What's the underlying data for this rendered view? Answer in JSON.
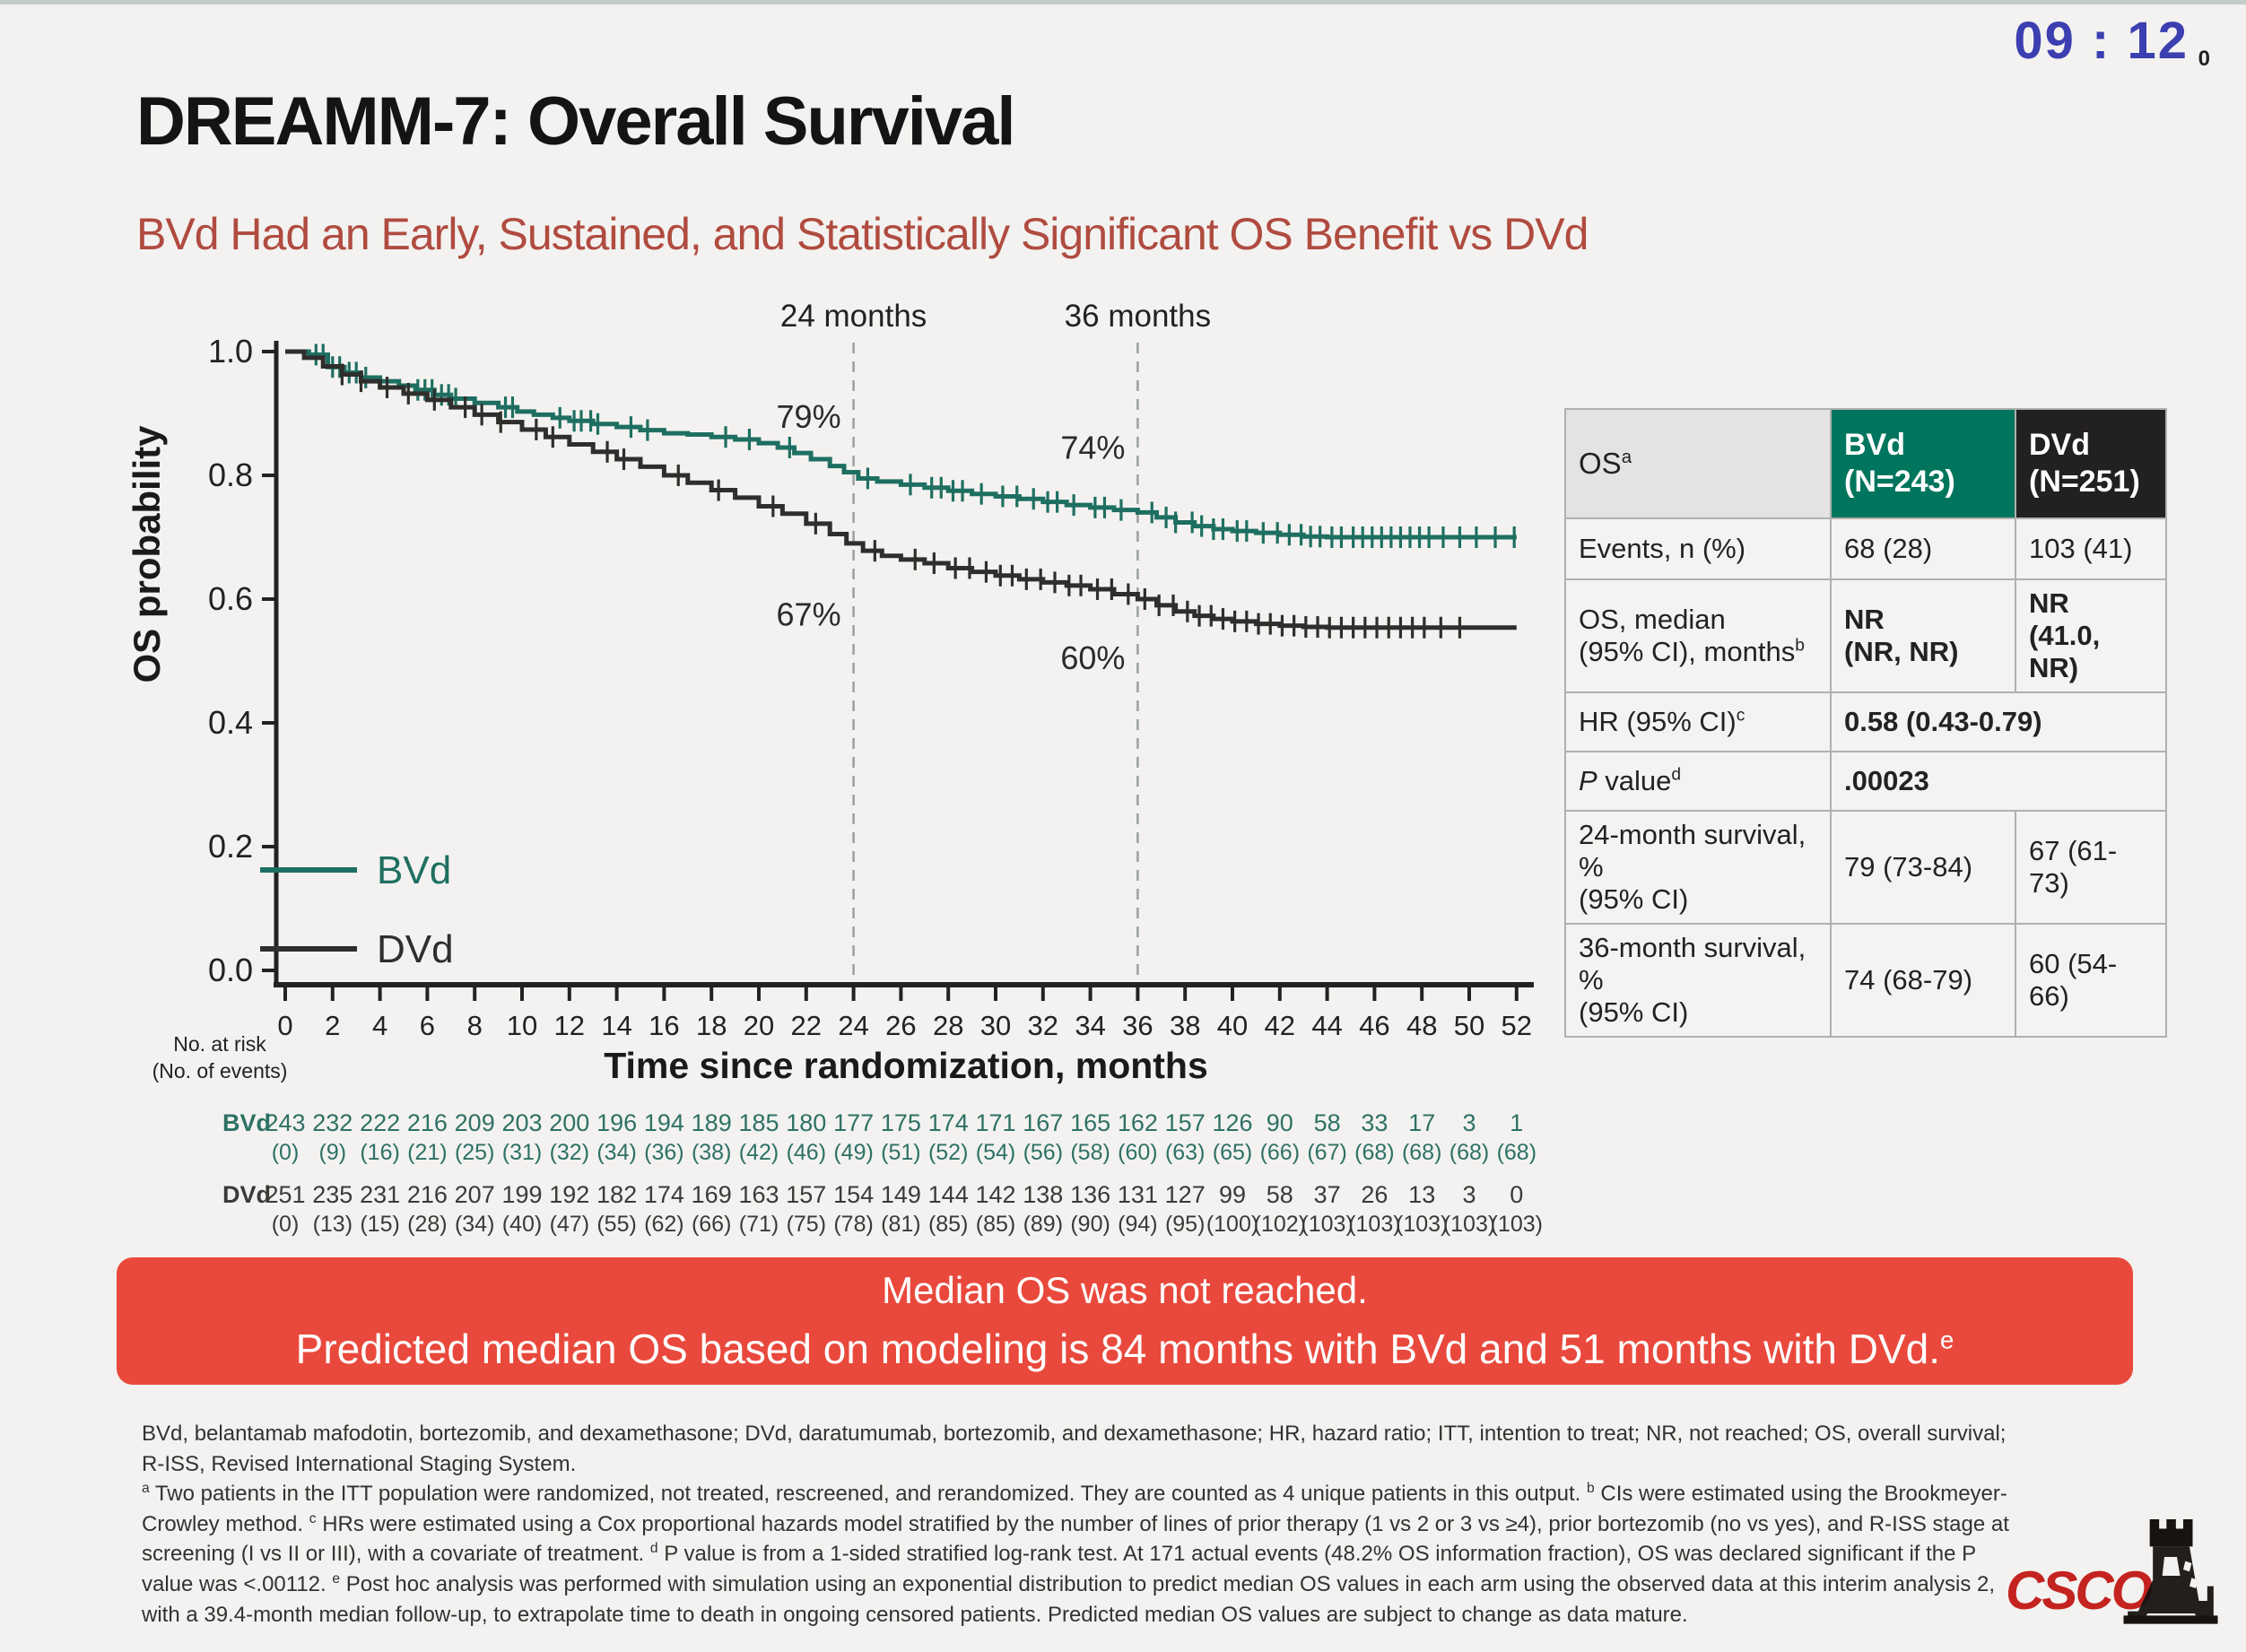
{
  "timer": {
    "value": "09 : 12",
    "small_suffix": "0"
  },
  "title": "DREAMM-7: Overall Survival",
  "subtitle": "BVd Had an Early, Sustained, and Statistically Significant OS Benefit vs DVd",
  "colors": {
    "bvd_teal": "#1E6F61",
    "dvd_dark": "#2F2E2C",
    "banner_red": "#E9493C",
    "subtitle_red": "#B04B40",
    "timer_blue": "#3C3FB0",
    "header_green": "#00755D",
    "header_black": "#232120"
  },
  "chart_data": {
    "type": "line",
    "title": "",
    "xlabel": "Time since randomization, months",
    "ylabel": "OS probability",
    "xlim": [
      0,
      52
    ],
    "xtick_step": 2,
    "ylim": [
      0.0,
      1.0
    ],
    "ytick_step": 0.2,
    "grid": false,
    "legend_position": "lower-left",
    "milestones": [
      {
        "x": 24,
        "label": "24 months",
        "bvd_pct": "79%",
        "dvd_pct": "67%"
      },
      {
        "x": 36,
        "label": "36 months",
        "bvd_pct": "74%",
        "dvd_pct": "60%"
      }
    ],
    "series": [
      {
        "name": "BVd",
        "color": "#1E6F61",
        "steps": [
          [
            0,
            1.0
          ],
          [
            1.0,
            0.995
          ],
          [
            1.8,
            0.975
          ],
          [
            2.5,
            0.966
          ],
          [
            3.2,
            0.958
          ],
          [
            4.0,
            0.952
          ],
          [
            4.8,
            0.945
          ],
          [
            5.5,
            0.938
          ],
          [
            6.3,
            0.93
          ],
          [
            7.0,
            0.924
          ],
          [
            8.0,
            0.917
          ],
          [
            9.0,
            0.91
          ],
          [
            9.8,
            0.903
          ],
          [
            10.5,
            0.898
          ],
          [
            11.3,
            0.893
          ],
          [
            12.0,
            0.888
          ],
          [
            13.0,
            0.883
          ],
          [
            14.0,
            0.878
          ],
          [
            15.0,
            0.873
          ],
          [
            16.0,
            0.868
          ],
          [
            17.0,
            0.866
          ],
          [
            18.0,
            0.862
          ],
          [
            19.0,
            0.858
          ],
          [
            20.0,
            0.852
          ],
          [
            20.8,
            0.845
          ],
          [
            21.5,
            0.836
          ],
          [
            22.2,
            0.826
          ],
          [
            23.0,
            0.815
          ],
          [
            23.6,
            0.805
          ],
          [
            24.2,
            0.795
          ],
          [
            25.0,
            0.79
          ],
          [
            26.0,
            0.785
          ],
          [
            27.0,
            0.78
          ],
          [
            28.0,
            0.775
          ],
          [
            29.0,
            0.77
          ],
          [
            30.0,
            0.766
          ],
          [
            31.0,
            0.762
          ],
          [
            32.0,
            0.757
          ],
          [
            33.0,
            0.752
          ],
          [
            34.0,
            0.748
          ],
          [
            35.0,
            0.744
          ],
          [
            36.0,
            0.74
          ],
          [
            36.8,
            0.732
          ],
          [
            37.6,
            0.724
          ],
          [
            38.4,
            0.718
          ],
          [
            39.2,
            0.713
          ],
          [
            40.0,
            0.71
          ],
          [
            41.0,
            0.707
          ],
          [
            42.0,
            0.704
          ],
          [
            43.0,
            0.701
          ],
          [
            44.0,
            0.7
          ],
          [
            52.0,
            0.7
          ]
        ],
        "censors": [
          1.3,
          1.6,
          2.0,
          2.3,
          2.7,
          3.0,
          3.4,
          5.6,
          5.9,
          6.2,
          6.6,
          6.9,
          7.2,
          9.3,
          9.6,
          11.6,
          12.2,
          12.5,
          12.9,
          13.2,
          14.6,
          15.3,
          18.6,
          19.6,
          21.3,
          24.6,
          26.4,
          27.3,
          27.7,
          28.2,
          28.6,
          29.4,
          30.3,
          30.9,
          31.6,
          32.2,
          32.6,
          33.3,
          34.2,
          34.6,
          35.3,
          36.6,
          37.2,
          37.6,
          38.3,
          38.7,
          39.2,
          39.6,
          40.2,
          40.6,
          41.3,
          41.9,
          42.4,
          42.9,
          43.3,
          43.7,
          44.2,
          44.6,
          45.1,
          45.5,
          45.9,
          46.3,
          46.7,
          47.1,
          47.5,
          47.9,
          48.3,
          48.9,
          49.6,
          50.3,
          51.1,
          51.9
        ]
      },
      {
        "name": "DVd",
        "color": "#2F2E2C",
        "steps": [
          [
            0,
            1.0
          ],
          [
            0.8,
            0.99
          ],
          [
            1.6,
            0.976
          ],
          [
            2.4,
            0.963
          ],
          [
            3.2,
            0.952
          ],
          [
            4.0,
            0.942
          ],
          [
            5.0,
            0.932
          ],
          [
            6.0,
            0.922
          ],
          [
            7.0,
            0.91
          ],
          [
            8.0,
            0.898
          ],
          [
            9.0,
            0.886
          ],
          [
            10.0,
            0.874
          ],
          [
            11.0,
            0.862
          ],
          [
            12.0,
            0.85
          ],
          [
            13.0,
            0.838
          ],
          [
            14.0,
            0.826
          ],
          [
            15.0,
            0.814
          ],
          [
            16.0,
            0.8
          ],
          [
            17.0,
            0.788
          ],
          [
            18.0,
            0.776
          ],
          [
            19.0,
            0.764
          ],
          [
            20.0,
            0.75
          ],
          [
            21.0,
            0.738
          ],
          [
            22.0,
            0.722
          ],
          [
            23.0,
            0.705
          ],
          [
            23.7,
            0.69
          ],
          [
            24.4,
            0.678
          ],
          [
            25.2,
            0.67
          ],
          [
            26.0,
            0.664
          ],
          [
            27.0,
            0.658
          ],
          [
            28.0,
            0.65
          ],
          [
            29.0,
            0.644
          ],
          [
            30.0,
            0.638
          ],
          [
            31.0,
            0.632
          ],
          [
            32.0,
            0.627
          ],
          [
            33.0,
            0.622
          ],
          [
            34.0,
            0.616
          ],
          [
            35.0,
            0.608
          ],
          [
            36.0,
            0.6
          ],
          [
            36.8,
            0.59
          ],
          [
            37.6,
            0.58
          ],
          [
            38.4,
            0.573
          ],
          [
            39.2,
            0.568
          ],
          [
            40.0,
            0.564
          ],
          [
            41.0,
            0.56
          ],
          [
            42.0,
            0.557
          ],
          [
            43.0,
            0.555
          ],
          [
            44.0,
            0.554
          ],
          [
            52.0,
            0.554
          ]
        ],
        "censors": [
          2.4,
          3.2,
          4.3,
          5.2,
          6.3,
          7.6,
          8.3,
          9.1,
          10.6,
          11.3,
          13.6,
          14.3,
          16.6,
          18.3,
          20.6,
          22.4,
          24.9,
          26.6,
          27.4,
          28.3,
          28.9,
          29.6,
          30.2,
          30.7,
          31.3,
          31.9,
          32.5,
          33.1,
          33.6,
          34.3,
          34.9,
          35.6,
          36.3,
          36.9,
          37.5,
          38.1,
          38.6,
          39.1,
          39.6,
          40.1,
          40.6,
          41.1,
          41.6,
          42.1,
          42.6,
          43.1,
          43.6,
          44.1,
          44.6,
          45.1,
          45.6,
          46.1,
          46.6,
          47.1,
          47.6,
          48.1,
          48.8,
          49.6
        ]
      }
    ]
  },
  "risk_table": {
    "title_line1": "No. at risk",
    "title_line2": "(No. of events)",
    "rows": [
      {
        "label": "BVd",
        "color": "#2E7165",
        "at_risk": [
          243,
          232,
          222,
          216,
          209,
          203,
          200,
          196,
          194,
          189,
          185,
          180,
          177,
          175,
          174,
          171,
          167,
          165,
          162,
          157,
          126,
          90,
          58,
          33,
          17,
          3,
          1
        ],
        "events": [
          0,
          9,
          16,
          21,
          25,
          31,
          32,
          34,
          36,
          38,
          42,
          46,
          49,
          51,
          52,
          54,
          56,
          58,
          60,
          63,
          65,
          66,
          67,
          68,
          68,
          68,
          68
        ]
      },
      {
        "label": "DVd",
        "color": "#3A3A38",
        "at_risk": [
          251,
          235,
          231,
          216,
          207,
          199,
          192,
          182,
          174,
          169,
          163,
          157,
          154,
          149,
          144,
          142,
          138,
          136,
          131,
          127,
          99,
          58,
          37,
          26,
          13,
          3,
          0
        ],
        "events": [
          0,
          13,
          15,
          28,
          34,
          40,
          47,
          55,
          62,
          66,
          71,
          75,
          78,
          81,
          85,
          85,
          89,
          90,
          94,
          95,
          100,
          102,
          103,
          103,
          103,
          103,
          103
        ]
      }
    ]
  },
  "results_table": {
    "header": {
      "label": "OS",
      "label_sup": "a",
      "bvd_line1": "BVd",
      "bvd_line2": "(N=243)",
      "dvd_line1": "DVd",
      "dvd_line2": "(N=251)"
    },
    "events": {
      "label": "Events, n (%)",
      "bvd": "68 (28)",
      "dvd": "103 (41)"
    },
    "median": {
      "label_line1": "OS, median",
      "label_line2": "(95% CI), months",
      "label_sup": "b",
      "bvd_line1": "NR",
      "bvd_line2": "(NR, NR)",
      "dvd_line1": "NR",
      "dvd_line2": "(41.0, NR)"
    },
    "hr": {
      "label": "HR  (95% CI)",
      "label_sup": "c",
      "value": "0.58 (0.43-0.79)"
    },
    "pvalue": {
      "label_main": "P",
      "label_rest": " value",
      "label_sup": "d",
      "value": ".00023"
    },
    "m24": {
      "label_line1": "24-month survival, %",
      "label_line2": "(95% CI)",
      "bvd": "79 (73-84)",
      "dvd": "67 (61-73)"
    },
    "m36": {
      "label_line1": "36-month survival, %",
      "label_line2": "(95% CI)",
      "bvd": "74 (68-79)",
      "dvd": "60 (54-66)"
    }
  },
  "banner": {
    "line1": "Median OS was not reached.",
    "line2": "Predicted median OS based on modeling is 84 months with BVd and 51 months with DVd.",
    "line2_sup": "e"
  },
  "footnotes": {
    "abbreviations": "BVd, belantamab mafodotin, bortezomib, and dexamethasone; DVd, daratumumab, bortezomib, and dexamethasone; HR, hazard ratio; ITT, intention to treat; NR, not reached; OS, overall survival; R-ISS, Revised International Staging System.",
    "notes": [
      {
        "sup": "a",
        "text": "Two patients in the ITT population were randomized, not treated, rescreened, and rerandomized. They are counted as 4 unique patients in this output."
      },
      {
        "sup": "b",
        "text": "CIs were estimated using the Brookmeyer-Crowley method."
      },
      {
        "sup": "c",
        "text": "HRs were estimated using a Cox proportional hazards model stratified by the number of lines of prior therapy (1 vs 2 or 3 vs ≥4), prior bortezomib (no vs yes), and R-ISS stage at screening (I vs II or III), with a covariate of treatment."
      },
      {
        "sup": "d",
        "text": "P value is from a 1-sided stratified log-rank test. At 171 actual events (48.2% OS information fraction), OS was declared significant if the P value was <.00112."
      },
      {
        "sup": "e",
        "text": "Post hoc analysis was performed with simulation using an exponential distribution to predict median OS values in each arm using the observed data at this interim analysis 2, with a 39.4-month median follow-up, to extrapolate time to death in ongoing censored patients. Predicted median OS values are subject to change as data mature."
      }
    ]
  },
  "logo": {
    "text": "CSCO"
  }
}
